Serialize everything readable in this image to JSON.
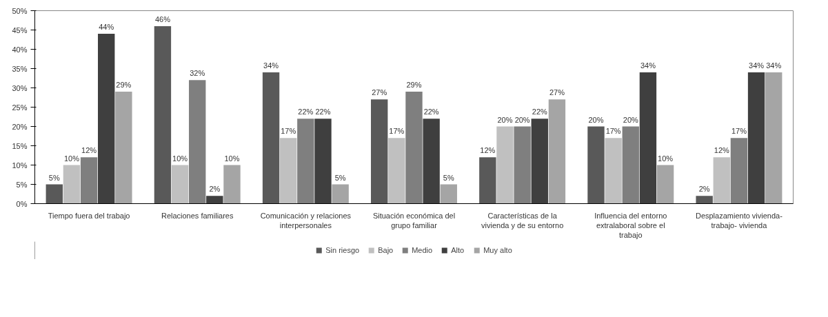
{
  "chart_data": {
    "type": "bar",
    "categories": [
      "Tiempo fuera del trabajo",
      "Relaciones familiares",
      "Comunicación y relaciones interpersonales",
      "Situación económica del grupo familiar",
      "Características de la vivienda y de su entorno",
      "Influencia del entorno extralaboral sobre el trabajo",
      "Desplazamiento vivienda- trabajo- vivienda"
    ],
    "series": [
      {
        "name": "Sin riesgo",
        "color": "#595959",
        "values": [
          5,
          46,
          34,
          27,
          12,
          20,
          2
        ],
        "value_labels": [
          "5%",
          "46%",
          "34%",
          "27%",
          "12%",
          "20%",
          "2%"
        ]
      },
      {
        "name": "Bajo",
        "color": "#c0c0c0",
        "values": [
          10,
          10,
          17,
          17,
          20,
          17,
          12
        ],
        "value_labels": [
          "10%",
          "10%",
          "17%",
          "17%",
          "20%",
          "17%",
          "12%"
        ]
      },
      {
        "name": "Medio",
        "color": "#7f7f7f",
        "values": [
          12,
          32,
          22,
          29,
          20,
          20,
          17
        ],
        "value_labels": [
          "12%",
          "32%",
          "22%",
          "29%",
          "20%",
          "20%",
          "17%"
        ]
      },
      {
        "name": "Alto",
        "color": "#3f3f3f",
        "values": [
          44,
          2,
          22,
          22,
          22,
          34,
          34
        ],
        "value_labels": [
          "44%",
          "2%",
          "22%",
          "22%",
          "22%",
          "34%",
          "34%"
        ]
      },
      {
        "name": "Muy alto",
        "color": "#a5a5a5",
        "values": [
          29,
          10,
          5,
          5,
          27,
          10,
          34
        ],
        "value_labels": [
          "29%",
          "10%",
          "5%",
          "5%",
          "27%",
          "10%",
          "34%"
        ]
      }
    ],
    "ylim": [
      0,
      50
    ],
    "yticks": [
      {
        "value": 0,
        "label": "0%"
      },
      {
        "value": 5,
        "label": "5%"
      },
      {
        "value": 10,
        "label": "10%"
      },
      {
        "value": 15,
        "label": "15%"
      },
      {
        "value": 20,
        "label": "20%"
      },
      {
        "value": 25,
        "label": "25%"
      },
      {
        "value": 30,
        "label": "30%"
      },
      {
        "value": 35,
        "label": "35%"
      },
      {
        "value": 40,
        "label": "40%"
      },
      {
        "value": 45,
        "label": "45%"
      },
      {
        "value": 50,
        "label": "50%"
      }
    ],
    "legend": "bottom",
    "grid": false
  }
}
